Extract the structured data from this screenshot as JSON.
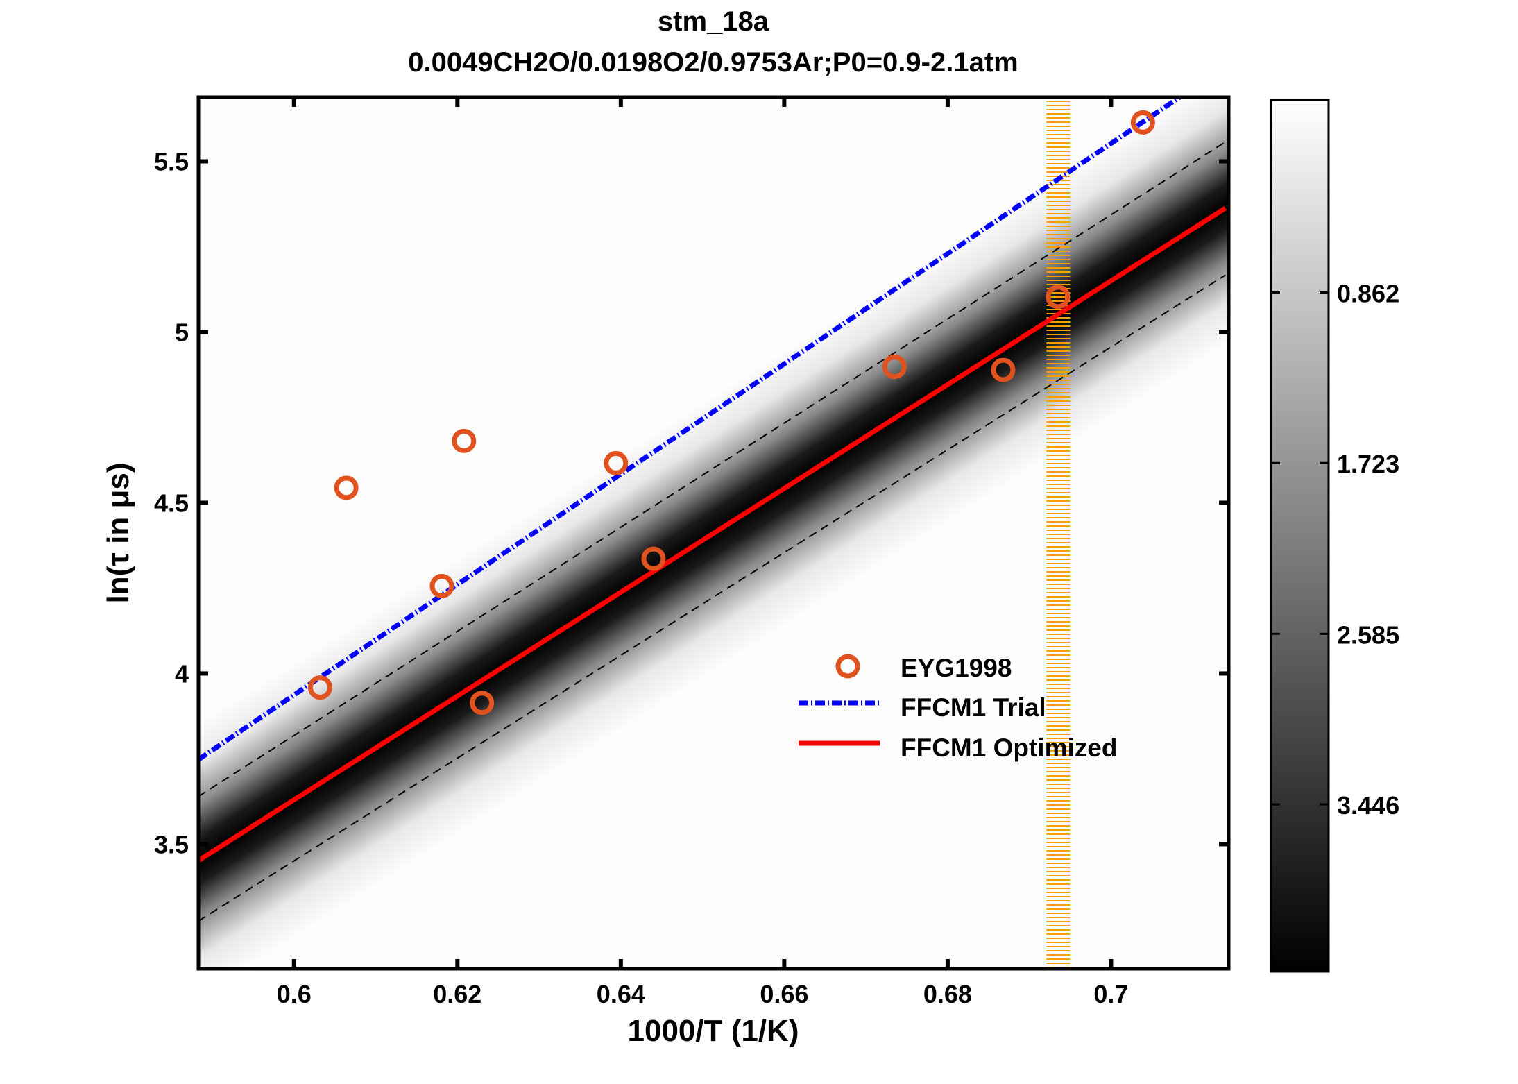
{
  "chart_data": {
    "type": "scatter",
    "title": "stm_18a",
    "subtitle": "0.0049CH2O/0.0198O2/0.9753Ar;P0=0.9-2.1atm",
    "xlabel": "1000/T (1/K)",
    "ylabel": "ln(τ in μs)",
    "xlim": [
      0.5883,
      0.7144
    ],
    "ylim": [
      3.135,
      5.688
    ],
    "xticks": [
      0.6,
      0.62,
      0.64,
      0.66,
      0.68,
      0.7
    ],
    "xtick_labels": [
      "0.6",
      "0.62",
      "0.64",
      "0.66",
      "0.68",
      "0.7"
    ],
    "yticks": [
      3.5,
      4,
      4.5,
      5,
      5.5
    ],
    "ytick_labels": [
      "3.5",
      "4",
      "4.5",
      "5",
      "5.5"
    ],
    "grid": false,
    "legend_position": "center-right",
    "series": [
      {
        "name": "EYG1998",
        "kind": "marker",
        "color": "#e0531f",
        "x": [
          0.6032,
          0.6064,
          0.6181,
          0.6208,
          0.623,
          0.6394,
          0.644,
          0.6735,
          0.6868,
          0.6935,
          0.7039
        ],
        "y": [
          3.959,
          4.544,
          4.256,
          4.681,
          3.914,
          4.616,
          4.336,
          4.898,
          4.889,
          5.103,
          5.614
        ]
      },
      {
        "name": "FFCM1 Trial",
        "kind": "dash-dot",
        "color": "#0000ff",
        "x": [
          0.5883,
          0.64,
          0.7084
        ],
        "y": [
          3.748,
          4.584,
          5.688
        ]
      },
      {
        "name": "FFCM1 Optimized",
        "kind": "solid",
        "color": "#ff0000",
        "x": [
          0.5883,
          0.64,
          0.714
        ],
        "y": [
          3.452,
          4.238,
          5.363
        ]
      }
    ],
    "uncertainty_bounds": [
      {
        "x": [
          0.5883,
          0.714
        ],
        "y": [
          3.64,
          5.557
        ]
      },
      {
        "x": [
          0.5883,
          0.714
        ],
        "y": [
          3.275,
          5.167
        ]
      }
    ],
    "highlight_band": {
      "x": [
        0.6921,
        0.695
      ],
      "color": "#f5a000"
    },
    "colorbar": {
      "ticks": [
        0.862,
        1.723,
        2.585,
        3.446
      ],
      "tick_labels": [
        "0.862",
        "1.723",
        "2.585",
        "3.446"
      ],
      "range": [
        -0.11,
        4.29
      ],
      "colormap": "gray-reversed"
    }
  }
}
